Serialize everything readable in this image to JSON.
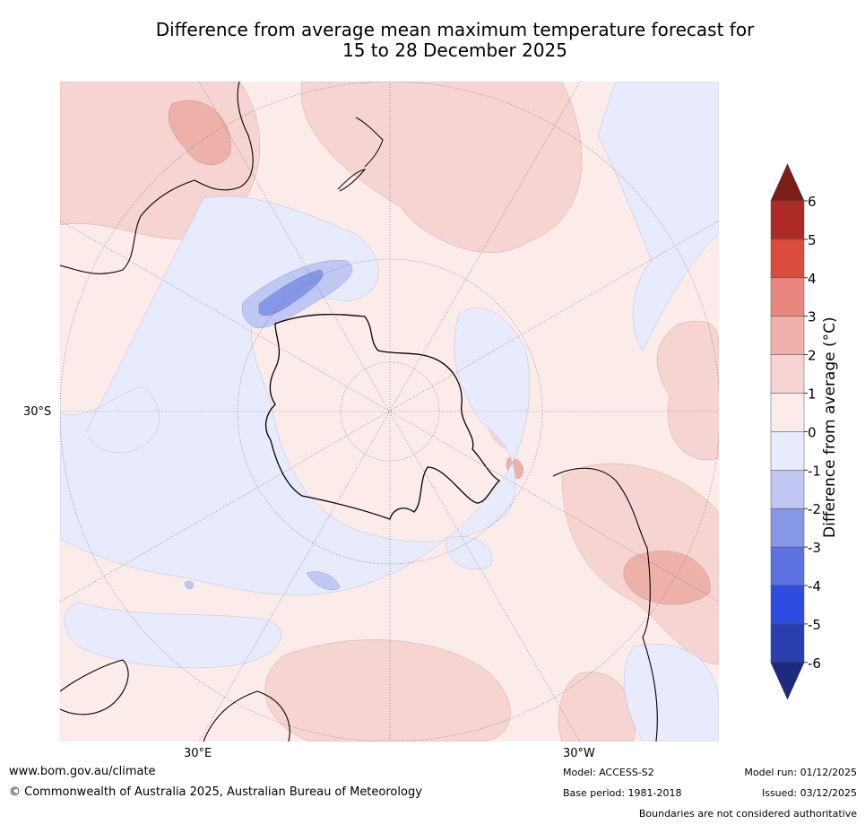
{
  "title": {
    "line1": "Difference from average mean maximum temperature forecast for",
    "line2": "15 to 28 December 2025"
  },
  "map": {
    "projection": "south-polar stereographic",
    "labels": {
      "lat": "30°S",
      "lon_east": "30°E",
      "lon_west": "30°W"
    }
  },
  "colorbar": {
    "title": "Difference from average (°C)",
    "ticks": [
      "6",
      "5",
      "4",
      "3",
      "2",
      "1",
      "0",
      "-1",
      "-2",
      "-3",
      "-4",
      "-5",
      "-6"
    ],
    "bins": [
      {
        "range": "5 to 6",
        "color": "#ae2a26"
      },
      {
        "range": "4 to 5",
        "color": "#db4b3e"
      },
      {
        "range": "3 to 4",
        "color": "#e9877f"
      },
      {
        "range": "2 to 3",
        "color": "#eeb1aa"
      },
      {
        "range": "1 to 2",
        "color": "#f5d4d2"
      },
      {
        "range": "0 to 1",
        "color": "#fbecea"
      },
      {
        "range": "-1 to 0",
        "color": "#e8ebfb"
      },
      {
        "range": "-2 to -1",
        "color": "#bfc7f2"
      },
      {
        "range": "-3 to -2",
        "color": "#8797e8"
      },
      {
        "range": "-4 to -3",
        "color": "#5b72e0"
      },
      {
        "range": "-5 to -4",
        "color": "#2e4de0"
      },
      {
        "range": "-6 to -5",
        "color": "#2a3fae"
      }
    ],
    "extend_high_color": "#7b1e1a",
    "extend_low_color": "#1e2a80"
  },
  "footer": {
    "url": "www.bom.gov.au/climate",
    "copyright": "© Commonwealth of Australia 2025, Australian Bureau of Meteorology",
    "model": "Model: ACCESS-S2",
    "base_period": "Base period: 1981-2018",
    "model_run": "Model run: 01/12/2025",
    "issued": "Issued: 03/12/2025",
    "disclaimer": "Boundaries are not considered authoritative"
  }
}
